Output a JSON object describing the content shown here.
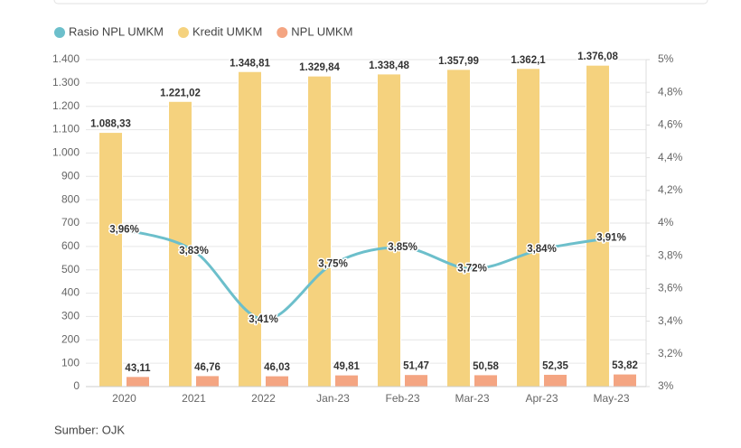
{
  "chart_data": {
    "type": "bar-line",
    "categories": [
      "2020",
      "2021",
      "2022",
      "Jan-23",
      "Feb-23",
      "Mar-23",
      "Apr-23",
      "May-23"
    ],
    "series": [
      {
        "name": "Rasio NPL UMKM",
        "type": "line",
        "color": "#6cbfcb",
        "axis": "y2",
        "values": [
          3.96,
          3.83,
          3.41,
          3.75,
          3.85,
          3.72,
          3.84,
          3.91
        ],
        "value_labels": [
          "3,96%",
          "3,83%",
          "3,41%",
          "3,75%",
          "3,85%",
          "3,72%",
          "3,84%",
          "3,91%"
        ]
      },
      {
        "name": "Kredit UMKM",
        "type": "bar",
        "color": "#f5d27e",
        "values": [
          1088.33,
          1221.02,
          1348.81,
          1329.84,
          1338.48,
          1357.99,
          1362.1,
          1376.08
        ],
        "value_labels": [
          "1.088,33",
          "1.221,02",
          "1.348,81",
          "1.329,84",
          "1.338,48",
          "1.357,99",
          "1.362,1",
          "1.376,08"
        ]
      },
      {
        "name": "NPL UMKM",
        "type": "bar",
        "color": "#f4a582",
        "values": [
          43.11,
          46.76,
          46.03,
          49.81,
          51.47,
          50.58,
          52.35,
          53.82
        ],
        "value_labels": [
          "43,11",
          "46,76",
          "46,03",
          "49,81",
          "51,47",
          "50,58",
          "52,35",
          "53,82"
        ]
      }
    ],
    "ylim": [
      0,
      1400
    ],
    "yticks": [
      0,
      100,
      200,
      300,
      400,
      500,
      600,
      700,
      800,
      900,
      {
        "value": 1000,
        "label": "1.000"
      },
      {
        "value": 1100,
        "label": "1.100"
      },
      {
        "value": 1200,
        "label": "1.200"
      },
      {
        "value": 1300,
        "label": "1.300"
      },
      {
        "value": 1400,
        "label": "1.400"
      }
    ],
    "y2lim": [
      3,
      5
    ],
    "y2ticks": [
      {
        "value": 3,
        "label": "3%"
      },
      {
        "value": 3.2,
        "label": "3,2%"
      },
      {
        "value": 3.4,
        "label": "3,4%"
      },
      {
        "value": 3.6,
        "label": "3,6%"
      },
      {
        "value": 3.8,
        "label": "3,8%"
      },
      {
        "value": 4,
        "label": "4%"
      },
      {
        "value": 4.2,
        "label": "4,2%"
      },
      {
        "value": 4.4,
        "label": "4,4%"
      },
      {
        "value": 4.6,
        "label": "4,6%"
      },
      {
        "value": 4.8,
        "label": "4,8%"
      },
      {
        "value": 5,
        "label": "5%"
      }
    ],
    "grid": true,
    "legend": "top-left",
    "source": "Sumber: OJK"
  }
}
